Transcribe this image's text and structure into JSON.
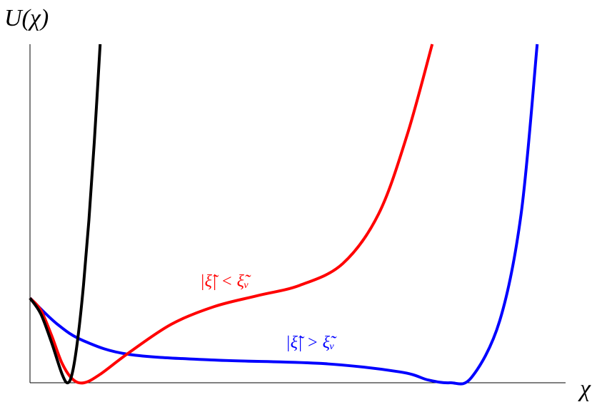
{
  "chart_data": {
    "type": "line",
    "y_label": "U(χ)",
    "x_label": "χ",
    "xlim": [
      0,
      10
    ],
    "ylim": [
      0,
      10
    ],
    "series": [
      {
        "color": "#000000",
        "x": [
          0,
          0.2,
          0.4,
          0.6,
          0.71,
          0.8,
          0.9,
          1.0,
          1.1,
          1.2,
          1.31
        ],
        "values": [
          2.5,
          2.04,
          1.2,
          0.25,
          0,
          0.36,
          1.4,
          2.9,
          4.8,
          7.1,
          10
        ]
      },
      {
        "name": "|ξ̃| < ξ̃ᵥ",
        "color": "#ff0000",
        "x": [
          0,
          0.2,
          0.4,
          0.6,
          0.8,
          1.01,
          1.31,
          1.84,
          2.64,
          3.44,
          4.24,
          5.04,
          5.84,
          6.51,
          7.04,
          7.51
        ],
        "values": [
          2.5,
          2.15,
          1.41,
          0.57,
          0.1,
          0,
          0.25,
          0.88,
          1.73,
          2.25,
          2.57,
          2.88,
          3.52,
          4.99,
          7.31,
          10
        ]
      },
      {
        "name": "|ξ̃| > ξ̃ᵥ",
        "color": "#0000ff",
        "x": [
          0,
          0.51,
          1.0,
          1.84,
          3.44,
          5.44,
          6.91,
          7.44,
          7.84,
          8.24,
          8.77,
          9.17,
          9.47
        ],
        "values": [
          2.5,
          1.73,
          1.24,
          0.84,
          0.67,
          0.57,
          0.32,
          0.08,
          0,
          0.15,
          1.83,
          4.99,
          10
        ]
      }
    ]
  }
}
